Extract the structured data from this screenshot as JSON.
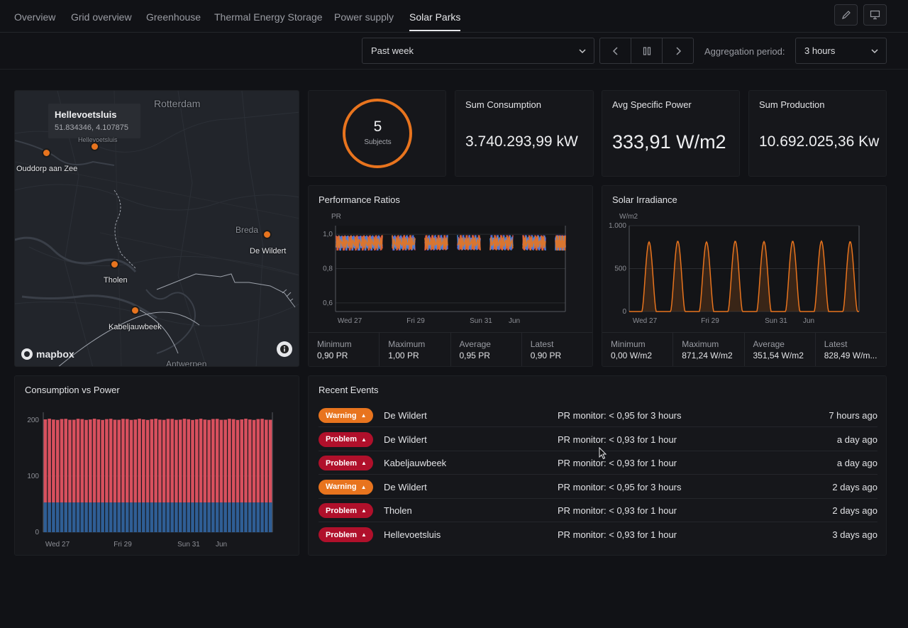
{
  "nav": {
    "tabs": [
      "Overview",
      "Grid overview",
      "Greenhouse",
      "Thermal Energy Storage",
      "Power supply",
      "Solar Parks"
    ],
    "active": "Solar Parks"
  },
  "toolbar": {
    "time_range": "Past week",
    "aggregation_label": "Aggregation period:",
    "aggregation_value": "3 hours"
  },
  "map": {
    "tooltip_title": "Hellevoetsluis",
    "tooltip_coords": "51.834346, 4.107875",
    "places": {
      "rotterdam": "Rotterdam",
      "ouddorp": "Ouddorp aan Zee",
      "breda": "Breda",
      "dewildert": "De Wildert",
      "tholen": "Tholen",
      "kabeljauwbeek": "Kabeljauwbeek",
      "antwerpen": "Antwerpen",
      "hellev_small": "Hellevoetsluis"
    },
    "logo": "mapbox"
  },
  "kpis": {
    "subjects_count": "5",
    "subjects_label": "Subjects",
    "sum_consumption_title": "Sum Consumption",
    "sum_consumption_value": "3.740.293,99 kW",
    "avg_power_title": "Avg Specific Power",
    "avg_power_value": "333,91 W/m2",
    "sum_production_title": "Sum Production",
    "sum_production_value": "10.692.025,36 Kw"
  },
  "performance": {
    "title": "Performance Ratios",
    "stats": [
      {
        "label": "Minimum",
        "value": "0,90 PR"
      },
      {
        "label": "Maximum",
        "value": "1,00 PR"
      },
      {
        "label": "Average",
        "value": "0,95 PR"
      },
      {
        "label": "Latest",
        "value": "0,90 PR"
      }
    ]
  },
  "irradiance": {
    "title": "Solar Irradiance",
    "stats": [
      {
        "label": "Minimum",
        "value": "0,00 W/m2"
      },
      {
        "label": "Maximum",
        "value": "871,24 W/m2"
      },
      {
        "label": "Average",
        "value": "351,54 W/m2"
      },
      {
        "label": "Latest",
        "value": "828,49 W/m..."
      }
    ]
  },
  "consumption": {
    "title": "Consumption vs Power"
  },
  "events": {
    "title": "Recent Events",
    "items": [
      {
        "severity": "Warning",
        "place": "De Wildert",
        "message": "PR monitor: < 0,95 for 3 hours",
        "time": "7 hours ago"
      },
      {
        "severity": "Problem",
        "place": "De Wildert",
        "message": "PR monitor: < 0,93 for 1 hour",
        "time": "a day ago"
      },
      {
        "severity": "Problem",
        "place": "Kabeljauwbeek",
        "message": "PR monitor: < 0,93 for 1 hour",
        "time": "a day ago"
      },
      {
        "severity": "Warning",
        "place": "De Wildert",
        "message": "PR monitor: < 0,95 for 3 hours",
        "time": "2 days ago"
      },
      {
        "severity": "Problem",
        "place": "Tholen",
        "message": "PR monitor: < 0,93 for 1 hour",
        "time": "2 days ago"
      },
      {
        "severity": "Problem",
        "place": "Hellevoetsluis",
        "message": "PR monitor: < 0,93 for 1 hour",
        "time": "3 days ago"
      }
    ]
  },
  "colors": {
    "accent": "#e8741e",
    "problem": "#b0102b",
    "consumption": "#d8505e",
    "power": "#2f5e95",
    "pr_series": [
      "#7b4bd8",
      "#d8505e",
      "#4a8ee0",
      "#e8741e"
    ]
  },
  "chart_data": [
    {
      "type": "line",
      "title": "Performance Ratios",
      "ylabel": "PR",
      "ylim": [
        0.55,
        1.05
      ],
      "yticks": [
        "1,0",
        "0,8",
        "0,6"
      ],
      "xticks": [
        "Wed 27",
        "Fri 29",
        "Sun 31",
        "Jun"
      ],
      "series_note": "5 subjects, PR oscillating 0.90-1.00 during daylight",
      "grid": true
    },
    {
      "type": "area",
      "title": "Solar Irradiance",
      "ylabel": "W/m2",
      "ylim": [
        0,
        1000
      ],
      "yticks": [
        "1.000",
        "500",
        "0"
      ],
      "xticks": [
        "Wed 27",
        "Fri 29",
        "Sun 31",
        "Jun"
      ],
      "daily_peaks": [
        810,
        820,
        810,
        820,
        815,
        820,
        820,
        815
      ],
      "grid": true
    },
    {
      "type": "bar",
      "title": "Consumption vs Power",
      "ylim": [
        0,
        225
      ],
      "yticks": [
        "200",
        "100",
        "0"
      ],
      "xticks": [
        "Wed 27",
        "Fri 29",
        "Sun 31",
        "Jun"
      ],
      "stacked": true,
      "bar_count": 56,
      "series": [
        {
          "value_level": 53
        },
        {
          "value_level": 148
        }
      ]
    }
  ]
}
